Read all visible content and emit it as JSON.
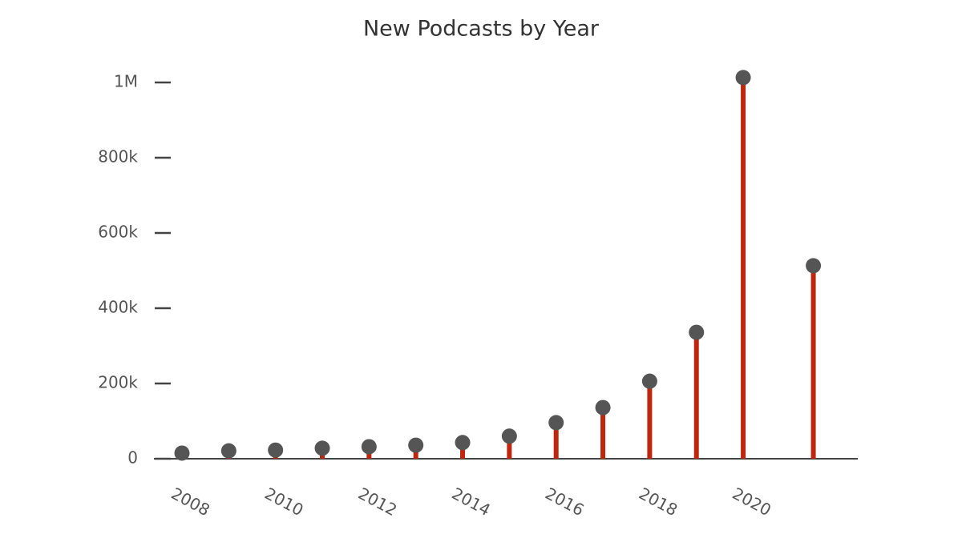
{
  "chart_data": {
    "type": "lollipop",
    "title": "New Podcasts by Year",
    "x": [
      2008,
      2009,
      2010,
      2011,
      2012,
      2013,
      2014,
      2015,
      2016,
      2017,
      2018,
      2019,
      2020,
      2021.5
    ],
    "values": [
      15000,
      21000,
      23000,
      28000,
      32000,
      36000,
      43000,
      60000,
      96000,
      136000,
      206000,
      336000,
      1013000,
      513000
    ],
    "color": "#c0250e",
    "marker_color": "#555555",
    "xlim": [
      2007.4,
      2022.45
    ],
    "xticks": [
      2008,
      2010,
      2012,
      2014,
      2016,
      2018,
      2020
    ],
    "ylim": [
      0,
      1050000
    ],
    "yticks": [
      0,
      {
        "value": 200000,
        "label": "200k"
      },
      {
        "value": 400000,
        "label": "400k"
      },
      {
        "value": 600000,
        "label": "600k"
      },
      {
        "value": 800000,
        "label": "800k"
      },
      {
        "value": 1000000,
        "label": "1M"
      }
    ]
  }
}
